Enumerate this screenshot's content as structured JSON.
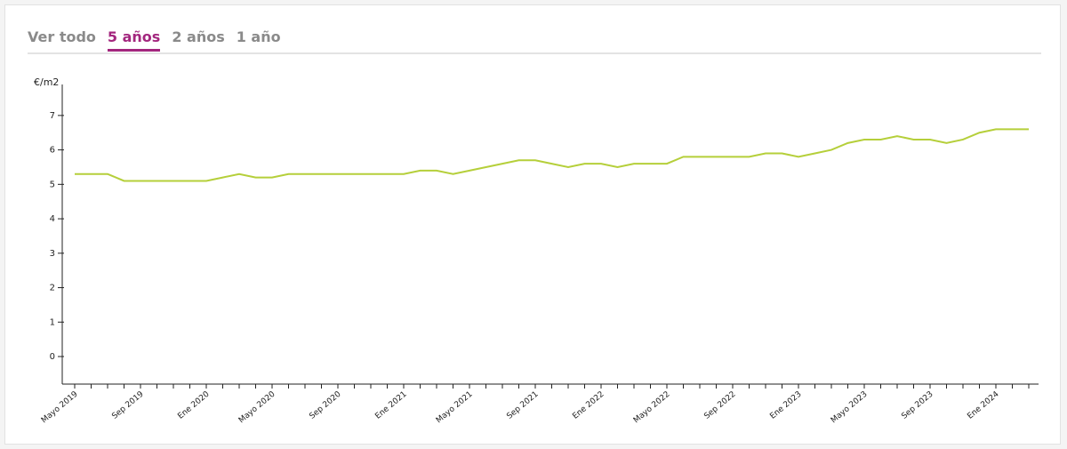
{
  "tabs": {
    "items": [
      "Ver todo",
      "5 años",
      "2 años",
      "1 año"
    ],
    "active": 1,
    "active_color": "#a3267e"
  },
  "chart_data": {
    "type": "line",
    "y_label": "€/m2",
    "color": "#b5cf3a",
    "categories": [
      "Mayo 2019",
      null,
      null,
      null,
      "Sep 2019",
      null,
      null,
      null,
      "Ene 2020",
      null,
      null,
      null,
      "Mayo 2020",
      null,
      null,
      null,
      "Sep 2020",
      null,
      null,
      null,
      "Ene 2021",
      null,
      null,
      null,
      "Mayo 2021",
      null,
      null,
      null,
      "Sep 2021",
      null,
      null,
      null,
      "Ene 2022",
      null,
      null,
      null,
      "Mayo 2022",
      null,
      null,
      null,
      "Sep 2022",
      null,
      null,
      null,
      "Ene 2023",
      null,
      null,
      null,
      "Mayo 2023",
      null,
      null,
      null,
      "Sep 2023",
      null,
      null,
      null,
      "Ene 2024",
      null,
      null
    ],
    "values": [
      5.3,
      5.3,
      5.3,
      5.1,
      5.1,
      5.1,
      5.1,
      5.1,
      5.1,
      5.2,
      5.3,
      5.2,
      5.2,
      5.3,
      5.3,
      5.3,
      5.3,
      5.3,
      5.3,
      5.3,
      5.3,
      5.4,
      5.4,
      5.3,
      5.4,
      5.5,
      5.6,
      5.7,
      5.7,
      5.6,
      5.5,
      5.6,
      5.6,
      5.5,
      5.6,
      5.6,
      5.6,
      5.8,
      5.8,
      5.8,
      5.8,
      5.8,
      5.9,
      5.9,
      5.8,
      5.9,
      6.0,
      6.2,
      6.3,
      6.3,
      6.4,
      6.3,
      6.3,
      6.2,
      6.3,
      6.5,
      6.6,
      6.6,
      6.6
    ],
    "ylim": [
      -0.8,
      7.9
    ],
    "yticks": [
      0,
      1,
      2,
      3,
      4,
      5,
      6,
      7
    ]
  }
}
